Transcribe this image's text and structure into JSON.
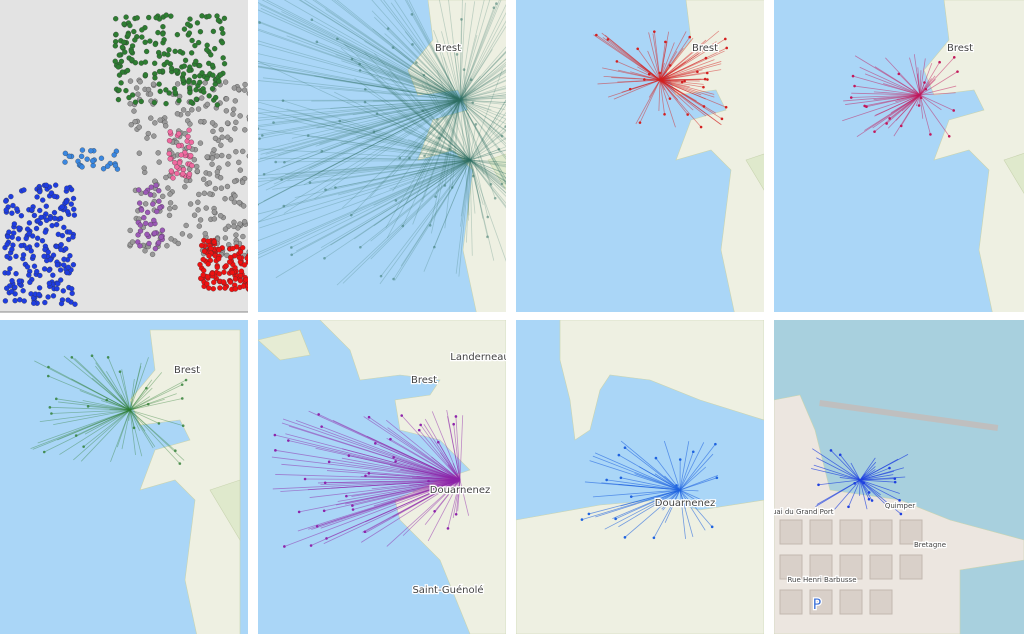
{
  "labels": [
    [
      "Brest"
    ],
    [
      "Brest"
    ],
    [
      "Brest"
    ],
    [
      "Brest"
    ],
    [
      "Landerneau",
      "Brest",
      "Douarnenez",
      "Saint-Guénolé"
    ],
    [
      "Douarnenez"
    ],
    [
      "Quai du Grand Port",
      "Rue Henri Barbusse",
      "Quimper",
      "Bretagne",
      "P"
    ]
  ]
}
